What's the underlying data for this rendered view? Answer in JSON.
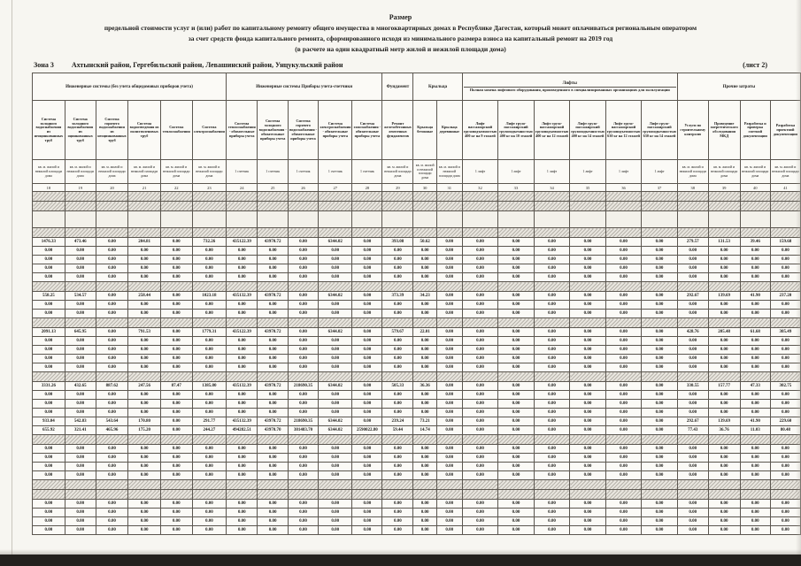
{
  "doc": {
    "title_lines": [
      "Размер",
      "предельной стоимости услуг и (или) работ по капитальному ремонту общего имущества в многоквартирных домах в Республике Дагестан, который может оплачиваться региональным оператором",
      "за счет средств фонда капитального ремонта, сформированного исходя из минимального размера взноса на капитальный ремонт на 2019 год",
      "(в расчете на один квадратный метр жилой и нежилой площади дома)"
    ],
    "zone_label": "Зона 3",
    "zone_text": "Ахтынский район, Гергебильский район, Левашинский район, Унцукульский район",
    "sheet_label": "(лист 2)"
  },
  "table": {
    "zero_value": "0.00",
    "groups": [
      {
        "label": "Инженерные системы (без учета общедомовых приборов учета)",
        "span": 6
      },
      {
        "label": "Инженерные системы Приборы учета-счетчики",
        "span": 5
      },
      {
        "label": "Фундамент",
        "span": 1
      },
      {
        "label": "Крыльца",
        "span": 2
      },
      {
        "label": "Лифты",
        "sub": "Полная замена лифтового оборудования, произведенного в специализированных организациях для эксплуатации",
        "span": 6
      },
      {
        "label": "Прочие затраты",
        "span": 4
      }
    ],
    "columns": [
      {
        "label": "Система холодного водоснабжения из неоцинкованных труб",
        "unit": "кв. м. жилой и нежилой площади дома",
        "num": "18"
      },
      {
        "label": "Система холодного водоснабжения из оцинкованных труб",
        "unit": "кв. м. жилой и нежилой площади дома",
        "num": "19"
      },
      {
        "label": "Система горячего водоснабжения из неоцинкованных труб",
        "unit": "кв. м. жилой и нежилой площади дома",
        "num": "20"
      },
      {
        "label": "Система водоотведения из полиэтиленовых труб",
        "unit": "кв. м. жилой и нежилой площади дома",
        "num": "21"
      },
      {
        "label": "Система теплоснабжения",
        "unit": "кв. м. жилой и нежилой площади дома",
        "num": "22"
      },
      {
        "label": "Система электроснабжения",
        "unit": "кв. м. жилой и нежилой площади дома",
        "num": "23"
      },
      {
        "label": "Система теплоснабжения - обязательные приборы учета",
        "unit": "1 счетчик",
        "num": "24"
      },
      {
        "label": "Система холодного водоснабжения - обязательные приборы учета",
        "unit": "1 счетчик",
        "num": "25"
      },
      {
        "label": "Система горячего водоснабжения - обязательные приборы учета",
        "unit": "1 счетчик",
        "num": "26"
      },
      {
        "label": "Система электроснабжения - обязательные приборы учета",
        "unit": "1 счетчик",
        "num": "27"
      },
      {
        "label": "Система газоснабжения - обязательные приборы учета",
        "unit": "1 счетчик",
        "num": "28"
      },
      {
        "label": "Ремонт железобетонных ленточных фундаментов",
        "unit": "кв. м. жилой и нежилой площади дома",
        "num": "29"
      },
      {
        "label": "Крыльца бетонные",
        "unit": "кв. м. жилой и нежилой площади дома",
        "num": "30"
      },
      {
        "label": "Крыльца деревянные",
        "unit": "кв. м. жилой и нежилой площади дома",
        "num": "31"
      },
      {
        "label": "Лифт пассажирский грузоподъемностью 400 кг на 9 этажей",
        "unit": "1 лифт",
        "num": "32"
      },
      {
        "label": "Лифт грузо-пассажирский грузоподъемностью 400 кг на 10 этажей",
        "unit": "1 лифт",
        "num": "33"
      },
      {
        "label": "Лифт грузо-пассажирский грузоподъемностью 400 кг на 12 этажей",
        "unit": "1 лифт",
        "num": "34"
      },
      {
        "label": "Лифт грузо-пассажирский грузоподъемностью 400 кг на 14 этажей",
        "unit": "1 лифт",
        "num": "35"
      },
      {
        "label": "Лифт грузо-пассажирский грузоподъемностью 630 кг на 12 этажей",
        "unit": "1 лифт",
        "num": "36"
      },
      {
        "label": "Лифт грузо-пассажирский грузоподъемностью 630 кг на 14 этажей",
        "unit": "1 лифт",
        "num": "37"
      },
      {
        "label": "Услуги по строительному контролю",
        "unit": "кв. м. жилой и нежилой площади дома",
        "num": "38"
      },
      {
        "label": "Проведение энергетического обследования МКД",
        "unit": "кв. м. жилой и нежилой площади дома",
        "num": "39"
      },
      {
        "label": "Разработка и проверка сметной документации",
        "unit": "кв. м. жилой и нежилой площади дома",
        "num": "40"
      },
      {
        "label": "Разработка проектной документации",
        "unit": "кв. м. жилой и нежилой площади дома",
        "num": "41"
      }
    ],
    "rows": [
      {
        "t": "h"
      },
      {
        "t": "h"
      },
      {
        "t": "b"
      },
      {
        "t": "h"
      },
      {
        "t": "d",
        "v": [
          "1476.33",
          "473.46",
          "0.00",
          "204.81",
          "0.00",
          "732.26",
          "435122.39",
          "43970.72",
          "0.00",
          "6344.02",
          "0.00",
          "393.08",
          "50.62",
          "0.00",
          "0.00",
          "0.00",
          "0.00",
          "0.00",
          "0.00",
          "0.00",
          "279.57",
          "131.53",
          "39.46",
          "159.68"
        ]
      },
      {
        "t": "z"
      },
      {
        "t": "z"
      },
      {
        "t": "z"
      },
      {
        "t": "z"
      },
      {
        "t": "h"
      },
      {
        "t": "d",
        "v": [
          "558.25",
          "534.57",
          "0.00",
          "258.44",
          "0.00",
          "1023.18",
          "435132.39",
          "43970.72",
          "0.00",
          "6344.02",
          "0.00",
          "373.39",
          "34.23",
          "0.00",
          "0.00",
          "0.00",
          "0.00",
          "0.00",
          "0.00",
          "0.00",
          "292.67",
          "139.69",
          "41.90",
          "237.20"
        ]
      },
      {
        "t": "z"
      },
      {
        "t": "z"
      },
      {
        "t": "h"
      },
      {
        "t": "d",
        "v": [
          "2091.13",
          "645.95",
          "0.00",
          "791.53",
          "0.00",
          "1779.31",
          "435122.39",
          "43970.72",
          "0.00",
          "6344.02",
          "0.00",
          "579.67",
          "22.01",
          "0.00",
          "0.00",
          "0.00",
          "0.00",
          "0.00",
          "0.00",
          "0.00",
          "428.76",
          "205.48",
          "61.68",
          "305.49"
        ]
      },
      {
        "t": "z"
      },
      {
        "t": "z"
      },
      {
        "t": "z"
      },
      {
        "t": "z"
      },
      {
        "t": "h"
      },
      {
        "t": "d",
        "v": [
          "3331.26",
          "432.65",
          "887.62",
          "247.56",
          "87.47",
          "1385.80",
          "435132.39",
          "43970.72",
          "218690.35",
          "6344.02",
          "0.00",
          "505.33",
          "36.36",
          "0.00",
          "0.00",
          "0.00",
          "0.00",
          "0.00",
          "0.00",
          "0.00",
          "330.55",
          "157.77",
          "47.33",
          "302.75"
        ]
      },
      {
        "t": "z"
      },
      {
        "t": "z"
      },
      {
        "t": "z"
      },
      {
        "t": "d",
        "v": [
          "933.04",
          "542.83",
          "543.64",
          "170.80",
          "0.00",
          "291.77",
          "435132.39",
          "43970.72",
          "218690.35",
          "6344.02",
          "0.00",
          "239.24",
          "73.21",
          "0.00",
          "0.00",
          "0.00",
          "0.00",
          "0.00",
          "0.00",
          "0.00",
          "292.67",
          "139.69",
          "41.90",
          "229.60"
        ]
      },
      {
        "t": "d",
        "v": [
          "655.92",
          "321.41",
          "465.96",
          "175.20",
          "0.00",
          "244.27",
          "494282.51",
          "43970.70",
          "381483.70",
          "6344.02",
          "2590022.80",
          "59.44",
          "14.74",
          "0.00",
          "0.00",
          "0.00",
          "0.00",
          "0.00",
          "0.00",
          "0.00",
          "77.43",
          "36.76",
          "11.03",
          "80.48"
        ]
      },
      {
        "t": "h"
      },
      {
        "t": "z"
      },
      {
        "t": "z"
      },
      {
        "t": "z"
      },
      {
        "t": "z"
      },
      {
        "t": "h"
      },
      {
        "t": "h"
      },
      {
        "t": "z"
      },
      {
        "t": "z"
      },
      {
        "t": "z"
      },
      {
        "t": "z"
      }
    ]
  }
}
